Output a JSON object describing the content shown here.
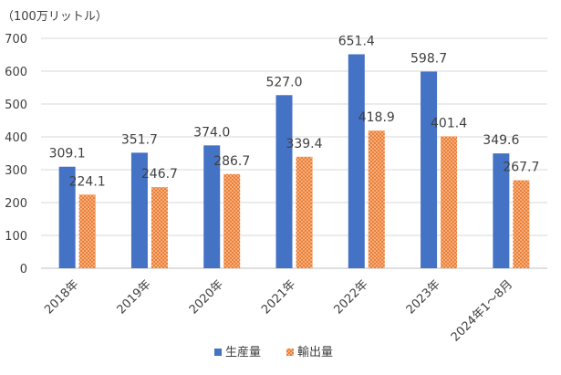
{
  "chart_data": {
    "type": "bar",
    "unit_label": "（100万リットル）",
    "categories": [
      "2018年",
      "2019年",
      "2020年",
      "2021年",
      "2022年",
      "2023年",
      "2024年1～8月"
    ],
    "series": [
      {
        "name": "生産量",
        "color": "#4472C4",
        "pattern": "solid",
        "values": [
          309.1,
          351.7,
          374.0,
          527.0,
          651.4,
          598.7,
          349.6
        ],
        "labels": [
          "309.1",
          "351.7",
          "374.0",
          "527.0",
          "651.4",
          "598.7",
          "349.6"
        ]
      },
      {
        "name": "輸出量",
        "color": "#ED7D31",
        "pattern": "dotted",
        "values": [
          224.1,
          246.7,
          286.7,
          339.4,
          418.9,
          401.4,
          267.7
        ],
        "labels": [
          "224.1",
          "246.7",
          "286.7",
          "339.4",
          "418.9",
          "401.4",
          "267.7"
        ]
      }
    ],
    "ylim": [
      0,
      700
    ],
    "yticks": [
      0,
      100,
      200,
      300,
      400,
      500,
      600,
      700
    ],
    "grid": true,
    "legend_position": "bottom"
  }
}
